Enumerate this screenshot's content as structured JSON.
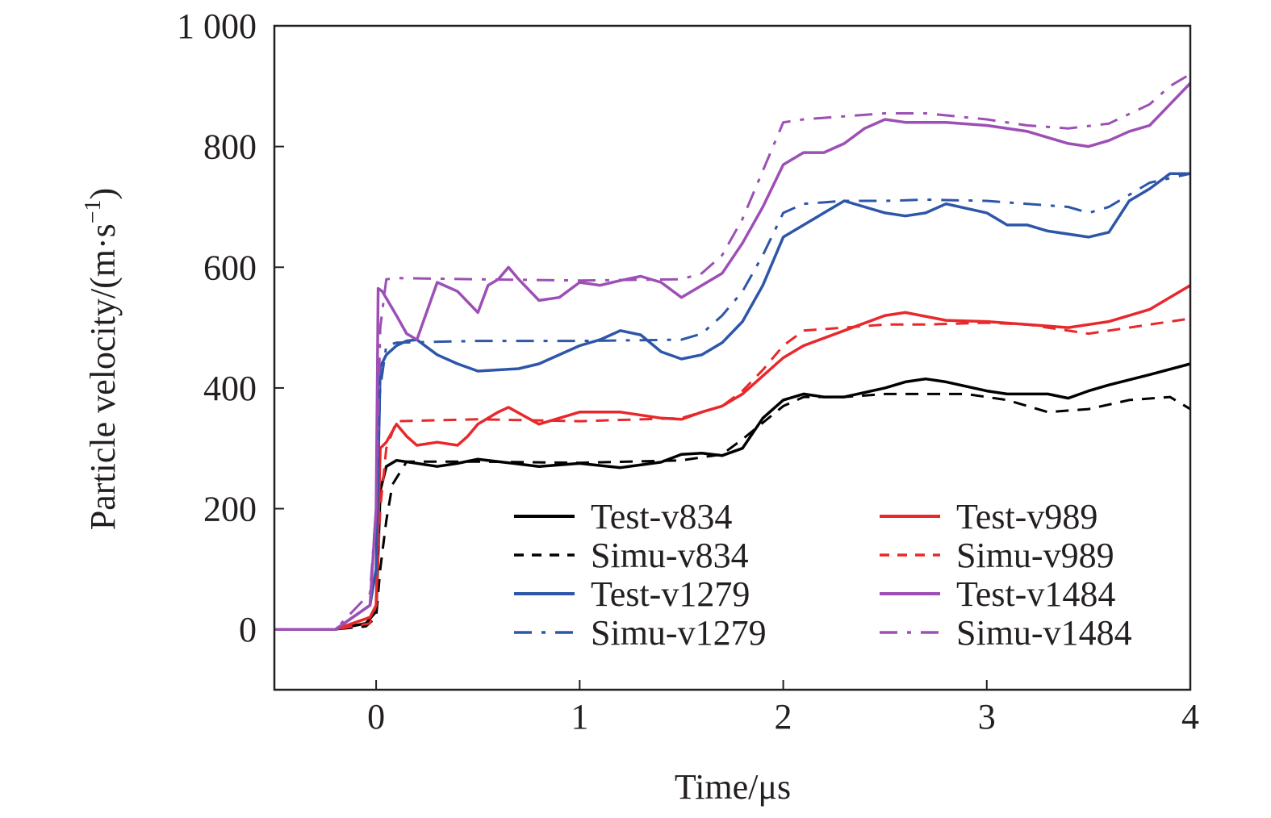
{
  "chart_data": {
    "type": "line",
    "xlabel": "Time/μs",
    "ylabel_main": "Particle velocity/(m·s",
    "ylabel_sup": "−1",
    "ylabel_close": ")",
    "xlim": [
      -0.5,
      4
    ],
    "ylim": [
      -100,
      1000
    ],
    "xticks": [
      0,
      1,
      2,
      3,
      4
    ],
    "xtick_labels": [
      "0",
      "1",
      "2",
      "3",
      "4"
    ],
    "yticks": [
      0,
      200,
      400,
      600,
      800,
      1000
    ],
    "ytick_labels": [
      "0",
      "200",
      "400",
      "600",
      "800",
      "1 000"
    ],
    "grid": false,
    "legend_position": "lower-right",
    "series": [
      {
        "name": "Test-v834",
        "style": "solid",
        "color": "#000000",
        "x": [
          -0.5,
          -0.2,
          -0.05,
          0.0,
          0.02,
          0.05,
          0.1,
          0.2,
          0.3,
          0.4,
          0.5,
          0.6,
          0.8,
          1.0,
          1.2,
          1.4,
          1.5,
          1.6,
          1.7,
          1.8,
          1.9,
          2.0,
          2.1,
          2.2,
          2.3,
          2.5,
          2.6,
          2.7,
          2.8,
          3.0,
          3.1,
          3.3,
          3.4,
          3.5,
          3.6,
          3.8,
          4.0
        ],
        "y": [
          0,
          0,
          10,
          30,
          230,
          270,
          280,
          275,
          270,
          275,
          282,
          278,
          270,
          275,
          268,
          277,
          290,
          292,
          288,
          300,
          350,
          380,
          390,
          385,
          385,
          400,
          410,
          415,
          410,
          395,
          390,
          390,
          383,
          395,
          405,
          422,
          440
        ]
      },
      {
        "name": "Simu-v834",
        "style": "dash",
        "color": "#000000",
        "x": [
          -0.5,
          -0.2,
          -0.05,
          0.0,
          0.02,
          0.05,
          0.08,
          0.15,
          0.5,
          1.0,
          1.5,
          1.7,
          1.8,
          2.0,
          2.1,
          2.3,
          2.5,
          2.7,
          2.9,
          3.1,
          3.3,
          3.5,
          3.7,
          3.9,
          4.0
        ],
        "y": [
          0,
          0,
          5,
          20,
          100,
          180,
          240,
          278,
          278,
          276,
          280,
          290,
          315,
          370,
          385,
          385,
          390,
          390,
          390,
          380,
          360,
          365,
          380,
          385,
          365
        ]
      },
      {
        "name": "Test-v989",
        "style": "solid",
        "color": "#e8282b",
        "x": [
          -0.5,
          -0.2,
          -0.03,
          0.0,
          0.02,
          0.05,
          0.1,
          0.15,
          0.2,
          0.3,
          0.4,
          0.45,
          0.5,
          0.6,
          0.65,
          0.8,
          0.9,
          1.0,
          1.2,
          1.4,
          1.5,
          1.6,
          1.7,
          1.8,
          1.9,
          2.0,
          2.1,
          2.3,
          2.5,
          2.6,
          2.8,
          3.0,
          3.2,
          3.4,
          3.5,
          3.6,
          3.8,
          4.0
        ],
        "y": [
          0,
          0,
          20,
          40,
          300,
          310,
          340,
          320,
          305,
          310,
          305,
          320,
          340,
          360,
          368,
          340,
          350,
          360,
          360,
          350,
          348,
          360,
          370,
          390,
          420,
          450,
          470,
          495,
          520,
          525,
          512,
          510,
          505,
          500,
          505,
          510,
          530,
          570
        ]
      },
      {
        "name": "Simu-v989",
        "style": "dash",
        "color": "#e8282b",
        "x": [
          -0.5,
          -0.2,
          -0.03,
          0.0,
          0.02,
          0.05,
          0.1,
          0.5,
          1.0,
          1.5,
          1.7,
          1.8,
          1.9,
          2.0,
          2.1,
          2.3,
          2.5,
          2.7,
          3.0,
          3.2,
          3.3,
          3.5,
          3.7,
          3.9,
          4.0
        ],
        "y": [
          0,
          0,
          10,
          40,
          200,
          300,
          345,
          348,
          345,
          350,
          370,
          395,
          430,
          470,
          495,
          500,
          505,
          505,
          508,
          505,
          500,
          490,
          500,
          510,
          515
        ]
      },
      {
        "name": "Test-v1279",
        "style": "solid",
        "color": "#2e56a8",
        "x": [
          -0.5,
          -0.2,
          -0.03,
          0.0,
          0.02,
          0.05,
          0.1,
          0.15,
          0.2,
          0.3,
          0.4,
          0.5,
          0.6,
          0.7,
          0.8,
          1.0,
          1.1,
          1.2,
          1.3,
          1.4,
          1.5,
          1.6,
          1.7,
          1.8,
          1.9,
          2.0,
          2.1,
          2.2,
          2.3,
          2.4,
          2.5,
          2.6,
          2.7,
          2.8,
          3.0,
          3.1,
          3.2,
          3.3,
          3.4,
          3.5,
          3.6,
          3.7,
          3.8,
          3.9,
          4.0
        ],
        "y": [
          0,
          0,
          40,
          100,
          435,
          455,
          470,
          478,
          480,
          455,
          440,
          428,
          430,
          432,
          440,
          470,
          480,
          495,
          488,
          460,
          448,
          455,
          475,
          510,
          570,
          650,
          670,
          690,
          710,
          700,
          690,
          685,
          690,
          705,
          690,
          670,
          670,
          660,
          655,
          650,
          658,
          710,
          730,
          755,
          755
        ]
      },
      {
        "name": "Simu-v1279",
        "style": "dashdot",
        "color": "#2e56a8",
        "x": [
          -0.5,
          -0.2,
          -0.03,
          0.0,
          0.02,
          0.05,
          0.1,
          0.5,
          1.0,
          1.5,
          1.6,
          1.7,
          1.8,
          1.9,
          2.0,
          2.1,
          2.3,
          2.5,
          2.7,
          3.0,
          3.2,
          3.4,
          3.5,
          3.6,
          3.7,
          3.8,
          4.0
        ],
        "y": [
          0,
          0,
          40,
          200,
          400,
          470,
          475,
          478,
          478,
          480,
          490,
          520,
          560,
          620,
          690,
          705,
          710,
          710,
          712,
          710,
          705,
          700,
          690,
          700,
          720,
          740,
          755
        ]
      },
      {
        "name": "Test-v1484",
        "style": "solid",
        "color": "#9d4fb5",
        "x": [
          -0.5,
          -0.2,
          -0.03,
          0.0,
          0.01,
          0.03,
          0.1,
          0.15,
          0.2,
          0.3,
          0.4,
          0.5,
          0.55,
          0.6,
          0.65,
          0.7,
          0.8,
          0.9,
          1.0,
          1.1,
          1.2,
          1.3,
          1.4,
          1.5,
          1.6,
          1.7,
          1.8,
          1.9,
          2.0,
          2.1,
          2.2,
          2.3,
          2.4,
          2.5,
          2.6,
          2.8,
          3.0,
          3.2,
          3.3,
          3.4,
          3.5,
          3.6,
          3.7,
          3.8,
          3.9,
          4.0
        ],
        "y": [
          0,
          0,
          40,
          200,
          565,
          560,
          520,
          490,
          480,
          575,
          560,
          525,
          570,
          580,
          600,
          580,
          545,
          550,
          575,
          570,
          578,
          585,
          575,
          550,
          570,
          590,
          640,
          700,
          770,
          790,
          790,
          805,
          830,
          845,
          840,
          840,
          835,
          825,
          815,
          805,
          800,
          810,
          825,
          835,
          870,
          905
        ]
      },
      {
        "name": "Simu-v1484",
        "style": "dashdot",
        "color": "#9d4fb5",
        "x": [
          -0.5,
          -0.2,
          -0.03,
          0.0,
          0.02,
          0.05,
          0.1,
          0.5,
          1.0,
          1.5,
          1.6,
          1.7,
          1.8,
          1.9,
          2.0,
          2.1,
          2.3,
          2.5,
          2.7,
          3.0,
          3.2,
          3.4,
          3.6,
          3.8,
          3.9,
          4.0
        ],
        "y": [
          0,
          0,
          60,
          200,
          500,
          580,
          582,
          580,
          578,
          580,
          590,
          620,
          680,
          760,
          840,
          845,
          850,
          855,
          855,
          845,
          835,
          830,
          838,
          870,
          900,
          920
        ]
      }
    ]
  }
}
